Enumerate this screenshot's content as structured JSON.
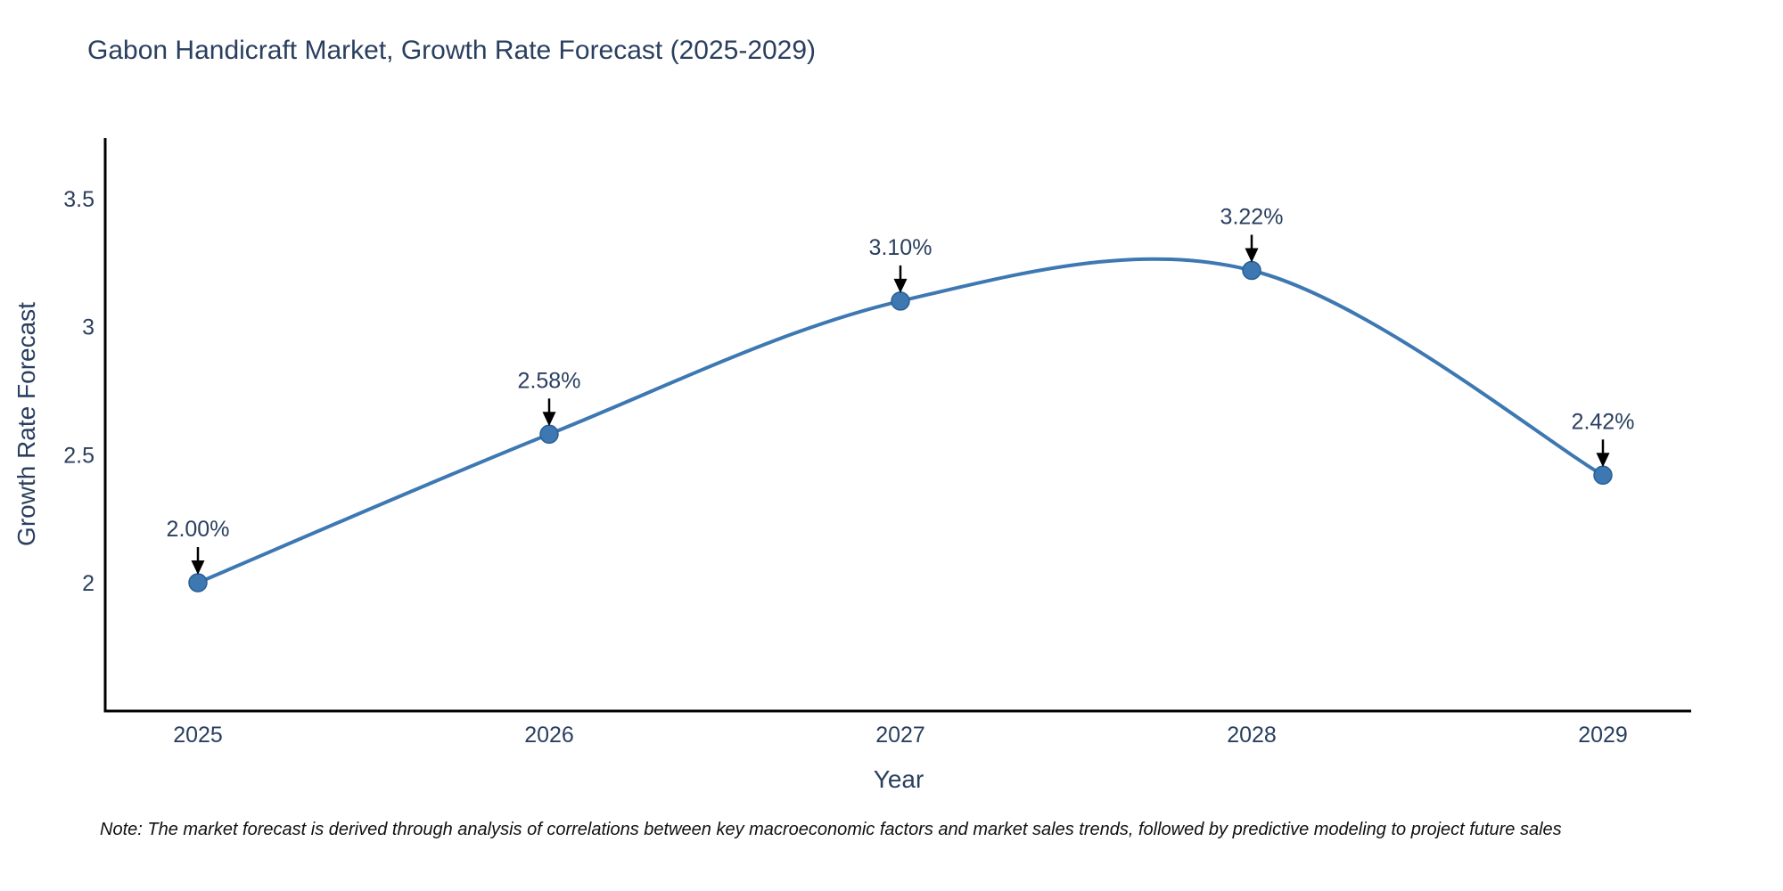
{
  "title": "Gabon Handicraft Market, Growth Rate Forecast (2025-2029)",
  "note": "Note: The market forecast is derived through analysis of correlations between key macroeconomic factors and market sales trends, followed by predictive modeling to project future sales",
  "colors": {
    "line": "#3d78b2",
    "marker_fill": "#3d78b2",
    "marker_stroke": "#2b5f94",
    "axis_line": "#000000",
    "tick_text": "#2a3f5f",
    "annotation_text": "#2a3f5f",
    "annotation_arrow": "#000000",
    "title_text": "#2a3f5f",
    "background": "#ffffff"
  },
  "chart_data": {
    "type": "line",
    "title": "Gabon Handicraft Market, Growth Rate Forecast (2025-2029)",
    "xlabel": "Year",
    "ylabel": "Growth Rate Forecast",
    "categories": [
      "2025",
      "2026",
      "2027",
      "2028",
      "2029"
    ],
    "series": [
      {
        "name": "Growth Rate Forecast",
        "values": [
          2.0,
          2.58,
          3.1,
          3.22,
          2.42
        ]
      }
    ],
    "point_labels": [
      "2.00%",
      "2.58%",
      "3.10%",
      "3.22%",
      "2.42%"
    ],
    "yticks": [
      2,
      2.5,
      3,
      3.5
    ],
    "ytick_labels": [
      "2",
      "2.5",
      "3",
      "3.5"
    ],
    "ylim": [
      1.5,
      3.74
    ],
    "grid": false,
    "legend": "none",
    "curve": "spline",
    "units": "percent"
  }
}
